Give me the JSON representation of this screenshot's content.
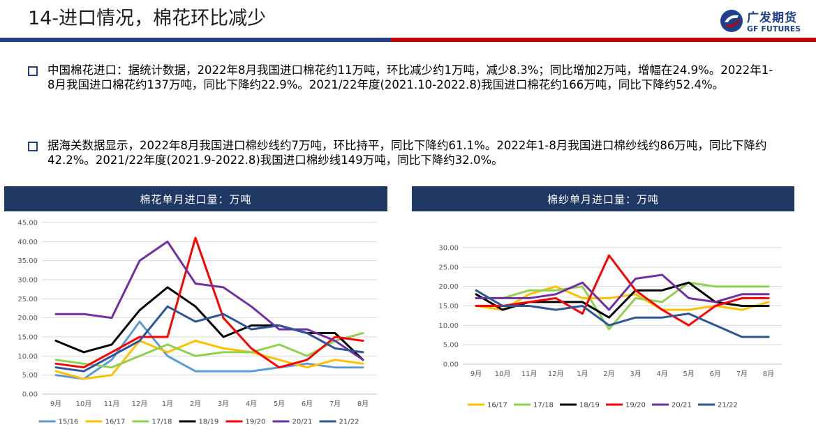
{
  "header": {
    "title": "14-进口情况，棉花环比减少",
    "logo_cn": "广发期货",
    "logo_en": "GF FUTURES",
    "colors": {
      "blue": "#1f3f8a",
      "red": "#c00000"
    }
  },
  "bullets": [
    "中国棉花进口：据统计数据，2022年8月我国进口棉花约11万吨，环比减少约1万吨，减少8.3%；同比增加2万吨，增幅在24.9%。2022年1-8月我国进口棉花约137万吨，同比下降约22.9%。2021/22年度(2021.10-2022.8)我国进口棉花约166万吨，同比下降约52.4%。",
    "据海关数据显示，2022年8月我国进口棉纱线约7万吨，环比持平，同比下降约61.1%。2022年1-8月我国进口棉纱线约86万吨，同比下降约42.2%。2021/22年度(2021.9-2022.8)我国进口棉纱线149万吨，同比下降约32.0%。"
  ],
  "chart_data": [
    {
      "type": "line",
      "title": "棉花单月进口量：万吨",
      "categories": [
        "9月",
        "10月",
        "11月",
        "12月",
        "1月",
        "2月",
        "3月",
        "4月",
        "5月",
        "6月",
        "7月",
        "8月"
      ],
      "ylim": [
        0,
        45
      ],
      "yticks": [
        "0.00",
        "5.00",
        "10.00",
        "15.00",
        "20.00",
        "25.00",
        "30.00",
        "35.00",
        "40.00",
        "45.00"
      ],
      "grid": true,
      "legend": "bottom",
      "series": [
        {
          "name": "15/16",
          "color": "#5b9bd5",
          "values": [
            5,
            4,
            9,
            19,
            10,
            6,
            6,
            6,
            7,
            8,
            7,
            7
          ]
        },
        {
          "name": "16/17",
          "color": "#ffc000",
          "values": [
            6,
            4,
            5,
            14,
            11,
            14,
            12,
            11,
            9,
            7,
            9,
            8
          ]
        },
        {
          "name": "17/18",
          "color": "#92d050",
          "values": [
            9,
            8,
            7,
            10,
            13,
            10,
            11,
            11,
            13,
            10,
            14,
            16
          ]
        },
        {
          "name": "18/19",
          "color": "#000000",
          "values": [
            14,
            11,
            13,
            22,
            28,
            23,
            15,
            18,
            18,
            16,
            16,
            9
          ]
        },
        {
          "name": "19/20",
          "color": "#ff0000",
          "values": [
            8,
            7,
            11,
            15,
            15,
            41,
            20,
            12,
            7,
            9,
            15,
            14
          ]
        },
        {
          "name": "20/21",
          "color": "#7030a0",
          "values": [
            21,
            21,
            20,
            35,
            40,
            29,
            28,
            23,
            17,
            17,
            14,
            9
          ]
        },
        {
          "name": "21/22",
          "color": "#2f5597",
          "values": [
            7,
            6,
            10,
            14,
            23,
            19,
            21,
            17,
            18,
            16,
            12,
            11
          ]
        }
      ]
    },
    {
      "type": "line",
      "title": "棉纱单月进口量：万吨",
      "categories": [
        "9月",
        "10月",
        "11月",
        "12月",
        "1月",
        "2月",
        "3月",
        "4月",
        "5月",
        "6月",
        "7月",
        "8月"
      ],
      "ylim": [
        0,
        30
      ],
      "yticks": [
        "0.00",
        "5.00",
        "10.00",
        "15.00",
        "20.00",
        "25.00",
        "30.00"
      ],
      "grid": true,
      "legend": "bottom",
      "series": [
        {
          "name": "16/17",
          "color": "#ffc000",
          "values": [
            15,
            14,
            18,
            20,
            17,
            17,
            18,
            14,
            14,
            15,
            14,
            16
          ]
        },
        {
          "name": "17/18",
          "color": "#92d050",
          "values": [
            17,
            17,
            19,
            19,
            20,
            9,
            17,
            16,
            21,
            20,
            20,
            20
          ]
        },
        {
          "name": "18/19",
          "color": "#000000",
          "values": [
            18,
            14,
            16,
            16,
            16,
            12,
            19,
            19,
            21,
            16,
            15,
            15
          ]
        },
        {
          "name": "19/20",
          "color": "#ff0000",
          "values": [
            15,
            15,
            16,
            17,
            13,
            28,
            19,
            14,
            10,
            15,
            17,
            17
          ]
        },
        {
          "name": "20/21",
          "color": "#7030a0",
          "values": [
            17,
            17,
            17,
            18,
            21,
            14,
            22,
            23,
            17,
            16,
            18,
            18
          ]
        },
        {
          "name": "21/22",
          "color": "#2f5597",
          "values": [
            19,
            15,
            15,
            14,
            15,
            10,
            12,
            12,
            13,
            10,
            7,
            7
          ]
        }
      ]
    }
  ]
}
